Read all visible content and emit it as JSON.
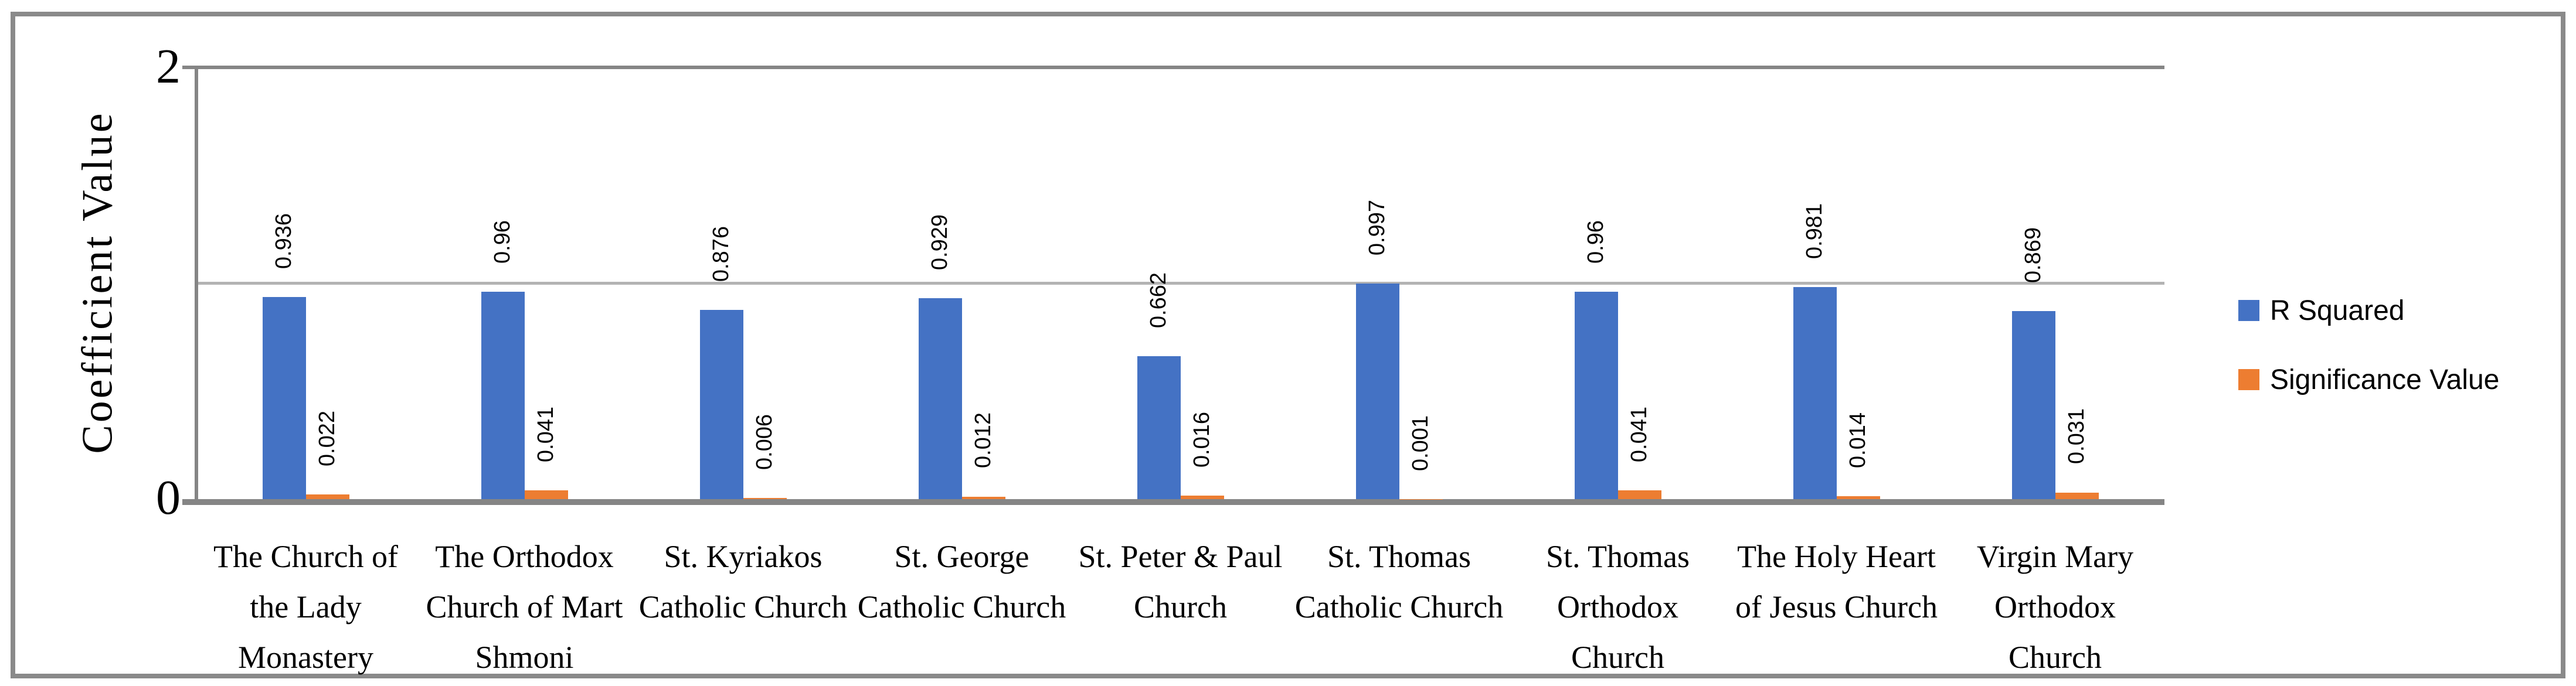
{
  "window": {
    "background": "#ffffff",
    "frame_color": "#8a8a8a"
  },
  "axes": {
    "y_title": "Coefficient Value",
    "ytick_top": "2",
    "ytick_bottom": "0"
  },
  "chart_data": {
    "type": "bar",
    "title": "",
    "xlabel": "",
    "ylabel": "Coefficient Value",
    "ylim": [
      0,
      2
    ],
    "ytick_values": [
      0,
      2
    ],
    "gridline_at": 1,
    "grid": "single horizontal gridline at y=1",
    "legend_position": "right",
    "data_label_rotation": "vertical",
    "categories": [
      "The Church of the Lady Monastery",
      "The Orthodox Church of Mart Shmoni",
      "St. Kyriakos Catholic Church",
      "St. George Catholic Church",
      "St. Peter & Paul Church",
      "St. Thomas Catholic Church",
      "St. Thomas Orthodox Church",
      "The Holy Heart of Jesus Church",
      "Virgin Mary Orthodox Church"
    ],
    "category_lines": [
      [
        "The Church of",
        "the Lady",
        "Monastery"
      ],
      [
        "The Orthodox",
        "Church of Mart",
        "Shmoni"
      ],
      [
        "St. Kyriakos",
        "Catholic Church"
      ],
      [
        "St. George",
        "Catholic Church"
      ],
      [
        "St. Peter & Paul",
        "Church"
      ],
      [
        "St. Thomas",
        "Catholic Church"
      ],
      [
        "St. Thomas",
        "Orthodox",
        "Church"
      ],
      [
        "The Holy Heart",
        "of Jesus Church"
      ],
      [
        "Virgin Mary",
        "Orthodox",
        "Church"
      ]
    ],
    "series": [
      {
        "name": "R Squared",
        "color": "#4472C4",
        "values": [
          0.936,
          0.96,
          0.876,
          0.929,
          0.662,
          0.997,
          0.96,
          0.981,
          0.869
        ],
        "labels": [
          "0.936",
          "0.96",
          "0.876",
          "0.929",
          "0.662",
          "0.997",
          "0.96",
          "0.981",
          "0.869"
        ]
      },
      {
        "name": "Significance Value",
        "color": "#ED7D31",
        "values": [
          0.022,
          0.041,
          0.006,
          0.012,
          0.016,
          0.001,
          0.041,
          0.014,
          0.031
        ],
        "labels": [
          "0.022",
          "0.041",
          "0.006",
          "0.012",
          "0.016",
          "0.001",
          "0.041",
          "0.014",
          "0.031"
        ]
      }
    ]
  }
}
